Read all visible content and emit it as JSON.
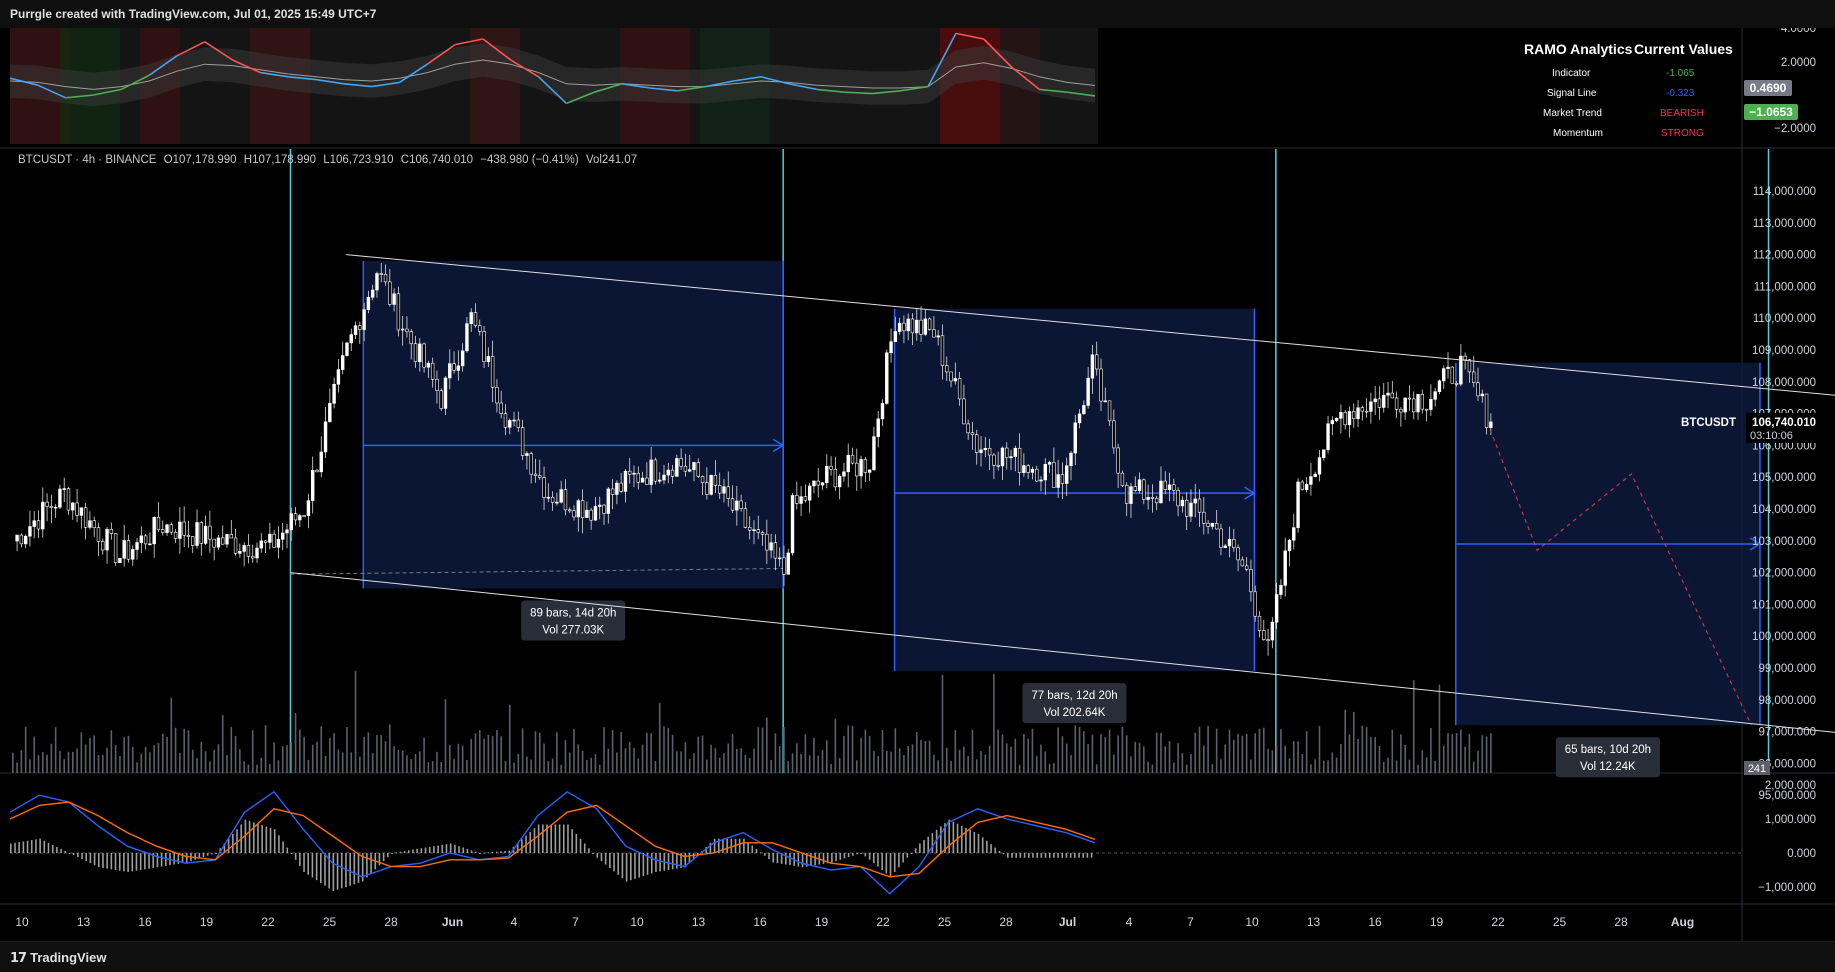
{
  "header": {
    "caption": "Purrgle created with TradingView.com, Jul 01, 2025 15:49 UTC+7"
  },
  "footer": {
    "brand": "TradingView",
    "logo_glyph": "17"
  },
  "legend": {
    "symbol": "BTCUSDT · 4h · BINANCE",
    "open": "O107,178.990",
    "high": "H107,178.990",
    "low": "L106,723.910",
    "close": "C106,740.010",
    "change": "−438.980 (−0.41%)",
    "volume": "Vol241.07"
  },
  "ramo_panel": {
    "title": "RAMO Analytics",
    "values_title": "Current Values",
    "rows": [
      {
        "label": "Indicator",
        "value": "-1.065",
        "color": "#4caf50"
      },
      {
        "label": "Signal Line",
        "value": "-0.323",
        "color": "#2962ff"
      },
      {
        "label": "Market Trend",
        "value": "BEARISH",
        "color": "#f23645"
      },
      {
        "label": "Momentum",
        "value": "STRONG",
        "color": "#f23645"
      }
    ],
    "axis_ticks": [
      "4.0000",
      "2.0000",
      "−2.0000"
    ],
    "badges": [
      {
        "text": "0.4690",
        "color": "#787b86"
      },
      {
        "text": "−1.0653",
        "color": "#4caf50"
      }
    ]
  },
  "price_axis": {
    "ticks": [
      114000,
      113000,
      112000,
      111000,
      110000,
      109000,
      108000,
      107000,
      106000,
      105000,
      104000,
      103000,
      102000,
      101000,
      100000,
      99000,
      98000,
      97000,
      96000,
      95000
    ],
    "tick_labels": [
      "114,000.000",
      "113,000.000",
      "112,000.000",
      "111,000.000",
      "110,000.000",
      "109,000.000",
      "108,000.000",
      "107,000.000",
      "106,000.000",
      "105,000.000",
      "104,000.000",
      "103,000.000",
      "102,000.000",
      "101,000.000",
      "100,000.000",
      "99,000.000",
      "98,000.000",
      "97,000.000",
      "96,000.000",
      "95,000.000"
    ],
    "last_price_label": "106,740.010",
    "countdown": "03:10:06",
    "symbol_tag": "BTCUSDT",
    "volume_tag": "241"
  },
  "macd_axis": {
    "ticks": [
      2000000,
      1000000,
      0,
      -1000000
    ],
    "tick_labels": [
      "2,000.000",
      "1,000.000",
      "0.000",
      "−1,000.000"
    ]
  },
  "time_axis": {
    "labels": [
      "10",
      "13",
      "16",
      "19",
      "22",
      "25",
      "28",
      "Jun",
      "4",
      "7",
      "10",
      "13",
      "16",
      "19",
      "22",
      "25",
      "28",
      "Jul",
      "4",
      "7",
      "10",
      "13",
      "16",
      "19",
      "22",
      "25",
      "28",
      "Aug"
    ]
  },
  "chart_data": {
    "type": "candlestick",
    "symbol": "BTCUSDT",
    "interval": "4h",
    "exchange": "BINANCE",
    "anchors": [
      {
        "i": 0,
        "p": 103000
      },
      {
        "i": 12,
        "p": 104500
      },
      {
        "i": 25,
        "p": 102500
      },
      {
        "i": 35,
        "p": 103500
      },
      {
        "i": 48,
        "p": 103000
      },
      {
        "i": 60,
        "p": 102800
      },
      {
        "i": 68,
        "p": 104000
      },
      {
        "i": 78,
        "p": 109000
      },
      {
        "i": 85,
        "p": 111500
      },
      {
        "i": 92,
        "p": 109500
      },
      {
        "i": 100,
        "p": 107500
      },
      {
        "i": 107,
        "p": 110000
      },
      {
        "i": 115,
        "p": 107000
      },
      {
        "i": 125,
        "p": 104500
      },
      {
        "i": 135,
        "p": 104000
      },
      {
        "i": 145,
        "p": 105000
      },
      {
        "i": 155,
        "p": 105500
      },
      {
        "i": 165,
        "p": 104500
      },
      {
        "i": 180,
        "p": 102000
      },
      {
        "i": 182,
        "p": 104000
      },
      {
        "i": 190,
        "p": 105000
      },
      {
        "i": 200,
        "p": 105500
      },
      {
        "i": 206,
        "p": 110000
      },
      {
        "i": 215,
        "p": 109500
      },
      {
        "i": 225,
        "p": 106000
      },
      {
        "i": 235,
        "p": 105500
      },
      {
        "i": 245,
        "p": 105000
      },
      {
        "i": 252,
        "p": 108500
      },
      {
        "i": 260,
        "p": 104500
      },
      {
        "i": 270,
        "p": 104500
      },
      {
        "i": 280,
        "p": 103500
      },
      {
        "i": 288,
        "p": 102000
      },
      {
        "i": 293,
        "p": 99500
      },
      {
        "i": 300,
        "p": 104500
      },
      {
        "i": 310,
        "p": 107000
      },
      {
        "i": 320,
        "p": 107500
      },
      {
        "i": 330,
        "p": 107500
      },
      {
        "i": 338,
        "p": 108500
      },
      {
        "i": 345,
        "p": 106740
      }
    ],
    "channel": {
      "upper": {
        "start": {
          "i": 78,
          "p": 112000
        },
        "end": {
          "i": 510,
          "p": 106500
        }
      },
      "lower": {
        "start": {
          "i": 65,
          "p": 102000
        },
        "end": {
          "i": 510,
          "p": 95800
        }
      }
    },
    "vertical_markers": [
      65,
      180,
      295,
      410,
      525
    ],
    "projections": [
      {
        "start": 82,
        "end": 180,
        "top": 111800,
        "bottom": 101500,
        "mid": 106000,
        "label1": "89 bars, 14d 20h",
        "label2": "Vol 277.03K"
      },
      {
        "start": 206,
        "end": 290,
        "top": 110300,
        "bottom": 98900,
        "mid": 104500,
        "label1": "77 bars, 12d 20h",
        "label2": "Vol 202.64K"
      },
      {
        "start": 337,
        "end": 408,
        "top": 108600,
        "bottom": 97200,
        "mid": 102900,
        "label1": "65 bars, 10d 20h",
        "label2": "Vol 12.24K"
      }
    ],
    "forecast_path": [
      {
        "i": 345,
        "p": 106500
      },
      {
        "i": 356,
        "p": 102700
      },
      {
        "i": 378,
        "p": 105100
      },
      {
        "i": 406,
        "p": 97200
      }
    ],
    "ramo_indicator": {
      "series": [
        {
          "name": "Indicator",
          "values": [
            0.2,
            -0.3,
            -1.2,
            -1.0,
            -0.6,
            0.4,
            1.8,
            2.8,
            1.5,
            0.6,
            0.3,
            0.1,
            -0.2,
            -0.4,
            -0.1,
            1.2,
            2.6,
            3.0,
            1.5,
            0.3,
            -1.6,
            -0.8,
            -0.2,
            -0.5,
            -0.7,
            -0.4,
            0.0,
            0.3,
            -0.2,
            -0.6,
            -0.8,
            -0.9,
            -0.7,
            -0.4,
            3.4,
            3.0,
            1.0,
            -0.6,
            -0.8,
            -1.065
          ]
        },
        {
          "name": "Signal Line",
          "values": [
            0.0,
            -0.1,
            -0.4,
            -0.6,
            -0.4,
            0.0,
            0.7,
            1.2,
            1.1,
            0.8,
            0.5,
            0.3,
            0.1,
            0.0,
            0.2,
            0.6,
            1.2,
            1.5,
            1.2,
            0.6,
            -0.2,
            -0.3,
            -0.2,
            -0.3,
            -0.4,
            -0.4,
            -0.2,
            0.0,
            -0.1,
            -0.3,
            -0.4,
            -0.5,
            -0.5,
            -0.4,
            1.0,
            1.3,
            0.9,
            0.3,
            -0.1,
            -0.323
          ]
        }
      ]
    },
    "macd": {
      "series": [
        {
          "name": "MACD",
          "values": [
            1200000,
            1700000,
            1500000,
            800000,
            200000,
            -100000,
            -300000,
            -200000,
            1200000,
            1800000,
            700000,
            -300000,
            -700000,
            -400000,
            -300000,
            0,
            -200000,
            -100000,
            1100000,
            1800000,
            1300000,
            200000,
            -200000,
            -400000,
            300000,
            600000,
            100000,
            -300000,
            -500000,
            -400000,
            -1200000,
            -400000,
            900000,
            1300000,
            1000000,
            800000,
            600000,
            300000
          ]
        },
        {
          "name": "Signal",
          "values": [
            1000000,
            1400000,
            1500000,
            1100000,
            600000,
            200000,
            -100000,
            -200000,
            500000,
            1300000,
            1100000,
            500000,
            -100000,
            -400000,
            -400000,
            -200000,
            -200000,
            -150000,
            500000,
            1200000,
            1400000,
            800000,
            200000,
            -100000,
            0,
            300000,
            300000,
            0,
            -300000,
            -400000,
            -700000,
            -600000,
            200000,
            900000,
            1100000,
            900000,
            700000,
            400000
          ]
        }
      ]
    }
  }
}
